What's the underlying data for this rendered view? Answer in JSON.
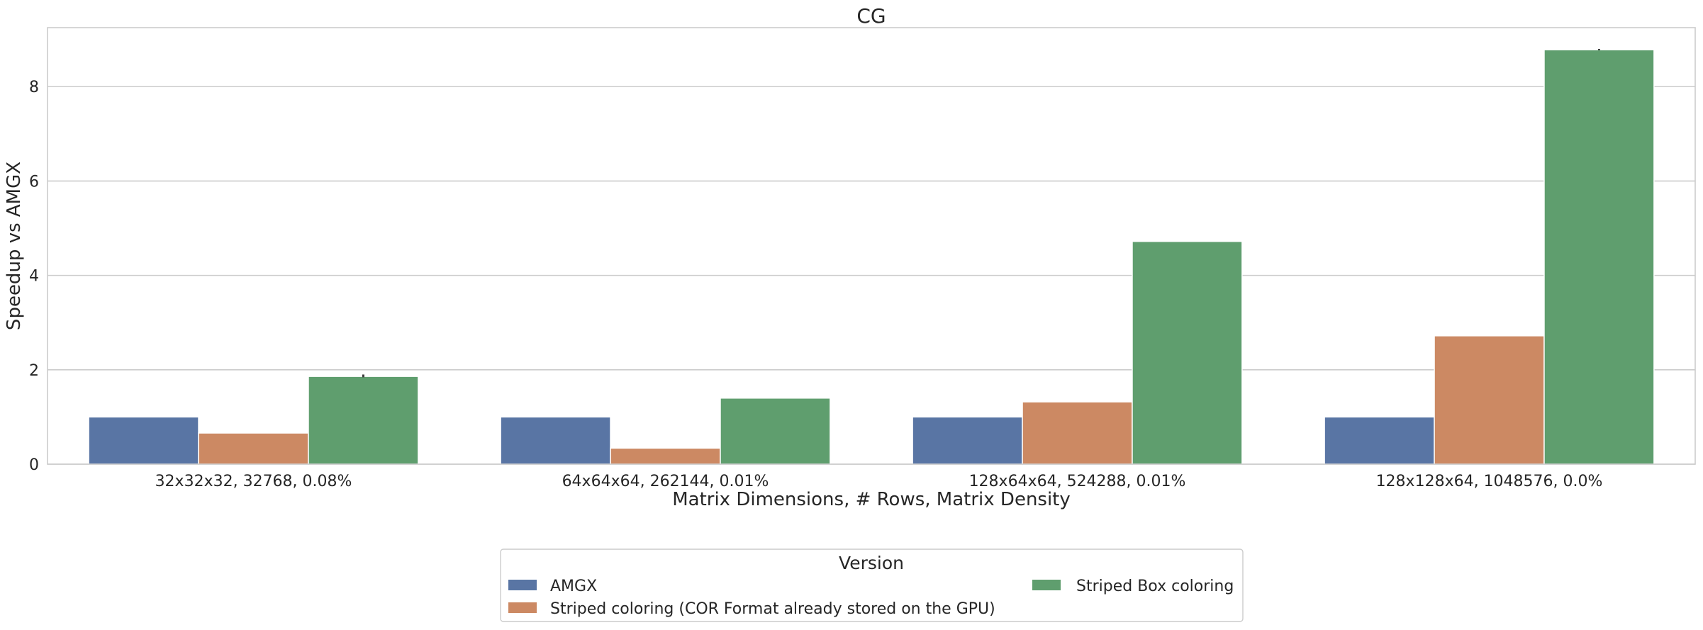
{
  "chart_data": {
    "type": "bar",
    "title": "CG",
    "xlabel": "Matrix Dimensions, # Rows, Matrix Density",
    "ylabel": "Speedup vs AMGX",
    "ylim": [
      0,
      9.25
    ],
    "yticks": [
      0,
      2,
      4,
      6,
      8
    ],
    "grid": true,
    "categories": [
      "32x32x32, 32768, 0.08%",
      "64x64x64, 262144, 0.01%",
      "128x64x64, 524288, 0.01%",
      "128x128x64, 1048576, 0.0%"
    ],
    "series": [
      {
        "name": "AMGX",
        "color": "#5975a4",
        "values": [
          1.0,
          1.0,
          1.0,
          1.0
        ]
      },
      {
        "name": "Striped coloring (COR Format already stored on the GPU)",
        "color": "#cc8963",
        "values": [
          0.66,
          0.34,
          1.32,
          2.72
        ]
      },
      {
        "name": "Striped Box coloring",
        "color": "#5f9e6e",
        "values": [
          1.86,
          1.4,
          4.72,
          8.78
        ]
      }
    ],
    "error_bars": [
      {
        "series": "Striped Box coloring",
        "category": "32x32x32, 32768, 0.08%",
        "low": 1.84,
        "high": 1.9
      },
      {
        "series": "Striped Box coloring",
        "category": "128x128x64, 1048576, 0.0%",
        "low": 8.77,
        "high": 8.8
      }
    ],
    "legend": {
      "title": "Version",
      "placement": "bottom-center"
    }
  }
}
